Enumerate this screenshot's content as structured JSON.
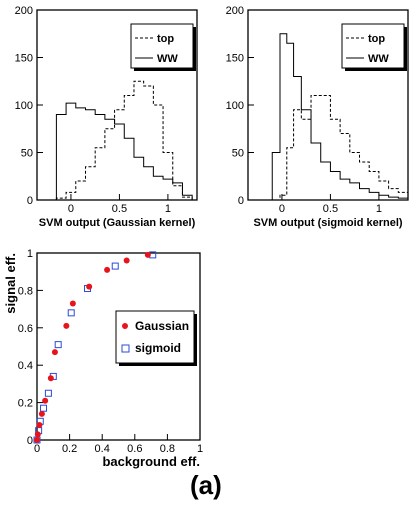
{
  "panel_label": "(a)",
  "chart_data": [
    {
      "type": "histogram",
      "xlabel": "SVM output (Gaussian kernel)",
      "ylabel": "",
      "xlim": [
        -0.35,
        1.3
      ],
      "ylim": [
        0,
        200
      ],
      "x_ticks": [
        "0",
        "0.5",
        "1"
      ],
      "y_ticks": [
        "0",
        "50",
        "100",
        "150",
        "200"
      ],
      "grid": false,
      "legend_position": "top-right",
      "bin_edges": [
        -0.25,
        -0.15,
        -0.05,
        0.05,
        0.15,
        0.25,
        0.35,
        0.45,
        0.55,
        0.65,
        0.75,
        0.85,
        0.95,
        1.05,
        1.15,
        1.25
      ],
      "series": [
        {
          "name": "top",
          "style": "dashed",
          "values": [
            0,
            2,
            8,
            20,
            35,
            55,
            75,
            95,
            110,
            125,
            120,
            100,
            50,
            15,
            3
          ]
        },
        {
          "name": "WW",
          "style": "solid",
          "values": [
            0,
            90,
            102,
            97,
            95,
            90,
            85,
            80,
            65,
            45,
            35,
            25,
            22,
            18,
            5
          ]
        }
      ]
    },
    {
      "type": "histogram",
      "xlabel": "SVM output (sigmoid kernel)",
      "ylabel": "",
      "xlim": [
        -0.35,
        1.3
      ],
      "ylim": [
        0,
        200
      ],
      "x_ticks": [
        "0",
        "0.5",
        "1"
      ],
      "y_ticks": [
        "0",
        "50",
        "100",
        "150",
        "200"
      ],
      "grid": false,
      "legend_position": "top-right",
      "bin_edges": [
        -0.1,
        -0.02,
        0.05,
        0.12,
        0.2,
        0.3,
        0.4,
        0.5,
        0.6,
        0.7,
        0.8,
        0.9,
        1.0,
        1.1,
        1.2,
        1.3
      ],
      "series": [
        {
          "name": "top",
          "style": "dashed",
          "values": [
            0,
            5,
            55,
            95,
            85,
            110,
            110,
            85,
            70,
            50,
            40,
            30,
            20,
            12,
            8
          ]
        },
        {
          "name": "WW",
          "style": "solid",
          "values": [
            50,
            175,
            165,
            130,
            95,
            60,
            40,
            30,
            22,
            18,
            12,
            8,
            5,
            3,
            2
          ]
        }
      ]
    },
    {
      "type": "scatter",
      "xlabel": "background eff.",
      "ylabel": "signal eff.",
      "xlim": [
        0,
        1
      ],
      "ylim": [
        0,
        1
      ],
      "x_ticks": [
        "0",
        "0.2",
        "0.4",
        "0.6",
        "0.8",
        "1"
      ],
      "y_ticks": [
        "0",
        "0.2",
        "0.4",
        "0.6",
        "0.8",
        "1"
      ],
      "grid": false,
      "legend_position": "center-right",
      "series": [
        {
          "name": "Gaussian",
          "marker": "filled-circle",
          "color": "#e8141c",
          "points": [
            [
              0.0,
              0.0
            ],
            [
              0.005,
              0.03
            ],
            [
              0.015,
              0.08
            ],
            [
              0.03,
              0.14
            ],
            [
              0.05,
              0.21
            ],
            [
              0.085,
              0.33
            ],
            [
              0.11,
              0.47
            ],
            [
              0.18,
              0.61
            ],
            [
              0.22,
              0.73
            ],
            [
              0.32,
              0.82
            ],
            [
              0.43,
              0.91
            ],
            [
              0.55,
              0.96
            ],
            [
              0.68,
              0.99
            ]
          ]
        },
        {
          "name": "sigmoid",
          "marker": "open-square",
          "color": "#2a4bd7",
          "points": [
            [
              0.0,
              0.0
            ],
            [
              0.01,
              0.05
            ],
            [
              0.02,
              0.1
            ],
            [
              0.04,
              0.17
            ],
            [
              0.07,
              0.25
            ],
            [
              0.1,
              0.34
            ],
            [
              0.13,
              0.51
            ],
            [
              0.21,
              0.68
            ],
            [
              0.31,
              0.81
            ],
            [
              0.48,
              0.93
            ],
            [
              0.71,
              0.99
            ]
          ]
        }
      ]
    }
  ]
}
